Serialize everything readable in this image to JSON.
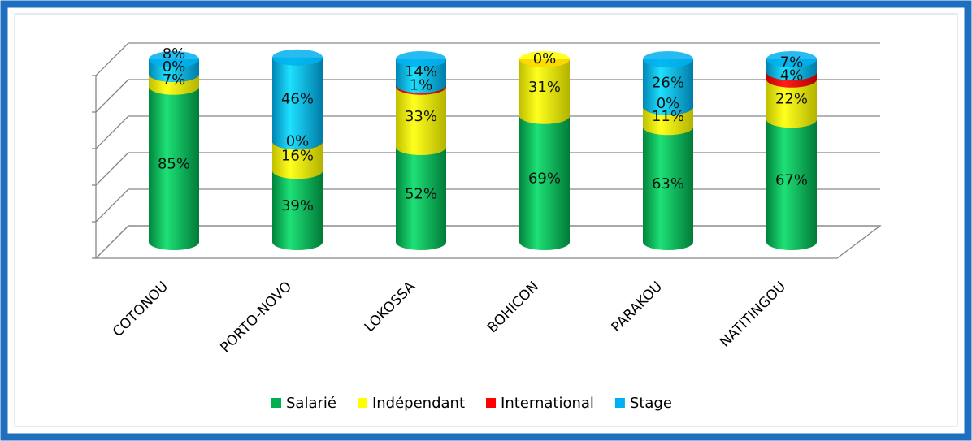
{
  "chart_data": {
    "type": "bar3d-stacked",
    "categories": [
      "COTONOU",
      "PORTO-NOVO",
      "LOKOSSA",
      "BOHICON",
      "PARAKOU",
      "NATITINGOU"
    ],
    "series": [
      {
        "name": "Salarié",
        "color": "#00b050",
        "values": [
          85,
          39,
          52,
          69,
          63,
          67
        ],
        "value_labels": [
          "85%",
          "39%",
          "52%",
          "69%",
          "63%",
          "67%"
        ]
      },
      {
        "name": "Indépendant",
        "color": "#ffff00",
        "values": [
          7,
          16,
          33,
          31,
          11,
          22
        ],
        "value_labels": [
          "7%",
          "16%",
          "33%",
          "31%",
          "11%",
          "22%"
        ]
      },
      {
        "name": "International",
        "color": "#ff0000",
        "values": [
          0,
          0,
          1,
          0,
          0,
          4
        ],
        "value_labels": [
          "0%",
          "0%",
          "1%",
          "0%",
          "0%",
          "4%"
        ]
      },
      {
        "name": "Stage",
        "color": "#00b0f0",
        "values": [
          8,
          46,
          14,
          null,
          26,
          7
        ],
        "value_labels": [
          "8%",
          "46%",
          "14%",
          null,
          "26%",
          "7%"
        ]
      }
    ],
    "ylim": [
      0,
      100
    ],
    "yticks": [
      0,
      20,
      40,
      60,
      80,
      100
    ],
    "grid": true,
    "legend": "bottom"
  }
}
